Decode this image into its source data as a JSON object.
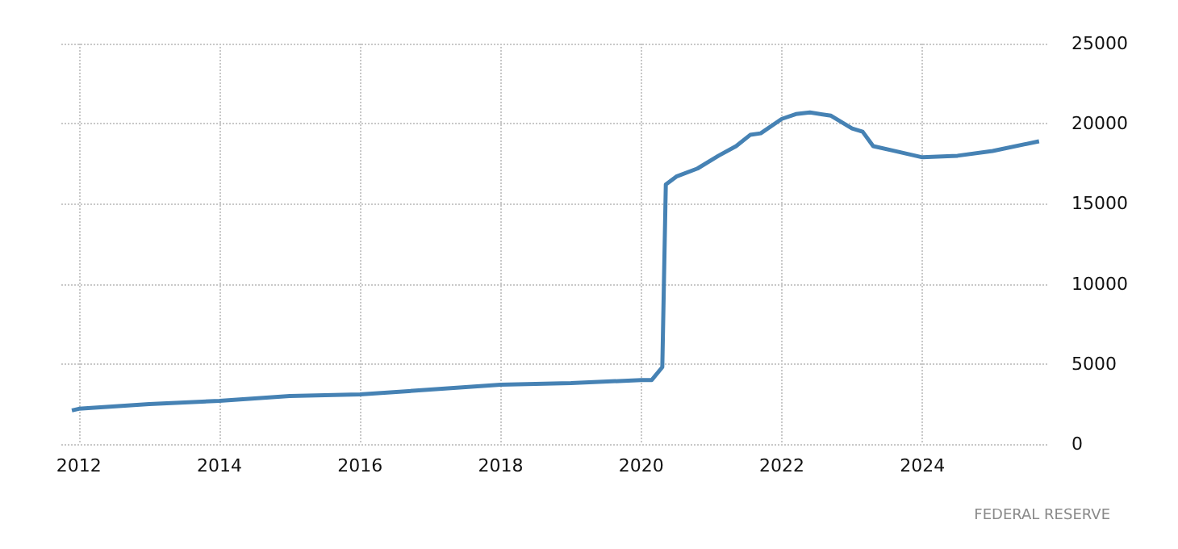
{
  "chart_data": {
    "type": "line",
    "x": [
      2011.9,
      2012,
      2013,
      2014,
      2015,
      2016,
      2017,
      2018,
      2019,
      2020,
      2020.15,
      2020.3,
      2020.35,
      2020.5,
      2020.8,
      2021.1,
      2021.35,
      2021.55,
      2021.7,
      2022,
      2022.2,
      2022.4,
      2022.7,
      2023,
      2023.15,
      2023.3,
      2023.6,
      2024,
      2024.5,
      2025,
      2025.66
    ],
    "series": [
      {
        "color": "#4682b4",
        "values": [
          2100,
          2200,
          2500,
          2700,
          3000,
          3100,
          3400,
          3700,
          3800,
          4000,
          4000,
          4800,
          16200,
          16700,
          17200,
          18000,
          18600,
          19300,
          19400,
          20300,
          20600,
          20700,
          20500,
          19700,
          19500,
          18600,
          18300,
          17900,
          18000,
          18300,
          18900
        ]
      }
    ],
    "xlim": [
      2011.75,
      2025.8
    ],
    "xticks": [
      2012,
      2014,
      2016,
      2018,
      2020,
      2022,
      2024
    ],
    "ylim": [
      0,
      25000
    ],
    "yticks": [
      0,
      5000,
      10000,
      15000,
      20000,
      25000
    ],
    "grid": true,
    "marker": "none",
    "line_style": "solid",
    "annotations": [
      "FEDERAL RESERVE"
    ]
  }
}
